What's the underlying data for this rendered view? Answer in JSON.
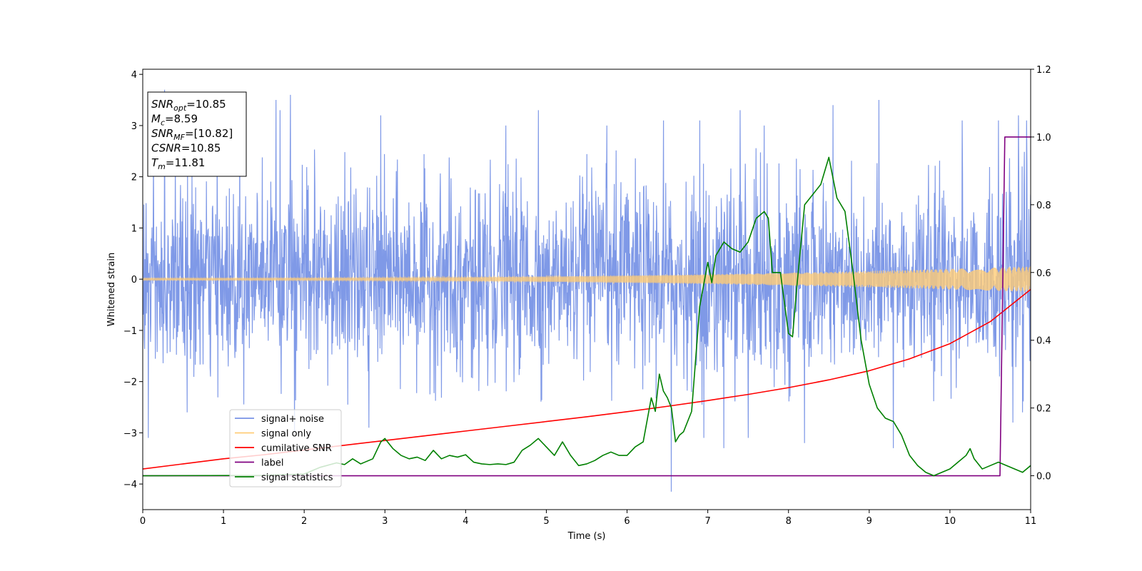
{
  "chart_data": {
    "type": "line",
    "title": "",
    "xlabel": "Time (s)",
    "ylabel": "Whitened strain",
    "y2label": "",
    "xlim": [
      0,
      11
    ],
    "ylim": [
      -4.5,
      4.1
    ],
    "y2lim": [
      -0.1,
      1.2
    ],
    "x_ticks": [
      0,
      1,
      2,
      3,
      4,
      5,
      6,
      7,
      8,
      9,
      10,
      11
    ],
    "y_ticks": [
      -4,
      -3,
      -2,
      -1,
      0,
      1,
      2,
      3,
      4
    ],
    "y2_ticks": [
      0.0,
      0.2,
      0.4,
      0.6,
      0.8,
      1.0,
      1.2
    ],
    "x_tick_labels": [
      "0",
      "1",
      "2",
      "3",
      "4",
      "5",
      "6",
      "7",
      "8",
      "9",
      "10",
      "11"
    ],
    "y_tick_labels": [
      "−4",
      "−3",
      "−2",
      "−1",
      "0",
      "1",
      "2",
      "3",
      "4"
    ],
    "y2_tick_labels": [
      "0.0",
      "0.2",
      "0.4",
      "0.6",
      "0.8",
      "1.0",
      "1.2"
    ],
    "grid": false,
    "legend_position": "lower-left",
    "annotation": {
      "lines": [
        {
          "sym": "SNR",
          "sub": "opt",
          "rest": "=10.85"
        },
        {
          "sym": "M",
          "sub": "c",
          "rest": "=8.59"
        },
        {
          "sym": "SNR",
          "sub": "MF",
          "rest": "=[10.82]"
        },
        {
          "sym": "CSNR",
          "sub": "",
          "rest": "=10.85"
        },
        {
          "sym": "T",
          "sub": "m",
          "rest": "=11.81"
        }
      ]
    },
    "series": [
      {
        "name": "signal+ noise",
        "axis": "left",
        "color": "#7893e6",
        "kind": "noise",
        "std": 0.9,
        "extremes": [
          [
            0.07,
            -3.1
          ],
          [
            0.27,
            3.7
          ],
          [
            0.55,
            -2.6
          ],
          [
            1.2,
            2.9
          ],
          [
            1.65,
            3.5
          ],
          [
            1.7,
            3.3
          ],
          [
            1.83,
            3.6
          ],
          [
            1.88,
            -3.0
          ],
          [
            2.8,
            -2.9
          ],
          [
            2.95,
            3.2
          ],
          [
            4.5,
            3.0
          ],
          [
            4.9,
            3.3
          ],
          [
            5.75,
            3.0
          ],
          [
            6.45,
            3.1
          ],
          [
            6.55,
            -4.15
          ],
          [
            6.9,
            3.1
          ],
          [
            6.95,
            -3.1
          ],
          [
            7.2,
            -3.3
          ],
          [
            7.4,
            3.3
          ],
          [
            7.5,
            -3.1
          ],
          [
            7.7,
            3.0
          ],
          [
            8.2,
            -3.2
          ],
          [
            8.55,
            3.4
          ],
          [
            9.12,
            3.5
          ],
          [
            9.3,
            -3.3
          ],
          [
            10.15,
            3.1
          ],
          [
            10.6,
            3.1
          ],
          [
            10.78,
            -2.8
          ],
          [
            10.85,
            3.2
          ],
          [
            10.95,
            3.1
          ],
          [
            10.9,
            -2.6
          ]
        ]
      },
      {
        "name": "signal only",
        "axis": "left",
        "color": "#ffcc77",
        "kind": "chirp",
        "amp_start": 0.02,
        "amp_end": 0.25
      },
      {
        "name": "cumilative SNR",
        "axis": "right",
        "color": "#ff0000",
        "x": [
          0,
          0.5,
          1,
          1.5,
          2,
          2.5,
          3,
          3.5,
          4,
          4.5,
          5,
          5.5,
          6,
          6.5,
          7,
          7.5,
          8,
          8.5,
          9,
          9.5,
          10,
          10.5,
          11
        ],
        "y": [
          0.02,
          0.035,
          0.05,
          0.062,
          0.076,
          0.09,
          0.104,
          0.118,
          0.132,
          0.146,
          0.16,
          0.174,
          0.189,
          0.205,
          0.222,
          0.24,
          0.26,
          0.283,
          0.31,
          0.345,
          0.39,
          0.455,
          0.55
        ]
      },
      {
        "name": "label",
        "axis": "right",
        "color": "#800080",
        "x": [
          0,
          10.62,
          10.68,
          11
        ],
        "y": [
          0,
          0,
          1,
          1
        ]
      },
      {
        "name": "signal statistics",
        "axis": "right",
        "color": "#008000",
        "x": [
          0,
          1.5,
          2.0,
          2.2,
          2.4,
          2.5,
          2.6,
          2.7,
          2.85,
          2.95,
          3.0,
          3.1,
          3.2,
          3.3,
          3.4,
          3.5,
          3.6,
          3.7,
          3.8,
          3.9,
          4.0,
          4.1,
          4.2,
          4.3,
          4.4,
          4.5,
          4.6,
          4.7,
          4.8,
          4.9,
          5.0,
          5.1,
          5.2,
          5.3,
          5.4,
          5.5,
          5.6,
          5.7,
          5.8,
          5.9,
          6.0,
          6.1,
          6.2,
          6.3,
          6.35,
          6.4,
          6.45,
          6.5,
          6.55,
          6.6,
          6.65,
          6.7,
          6.8,
          6.9,
          7.0,
          7.05,
          7.1,
          7.2,
          7.3,
          7.4,
          7.5,
          7.6,
          7.7,
          7.75,
          7.8,
          7.9,
          8.0,
          8.05,
          8.1,
          8.2,
          8.3,
          8.4,
          8.5,
          8.6,
          8.7,
          8.8,
          8.9,
          9.0,
          9.1,
          9.2,
          9.3,
          9.4,
          9.5,
          9.6,
          9.7,
          9.8,
          9.9,
          10.0,
          10.1,
          10.2,
          10.25,
          10.3,
          10.4,
          10.5,
          10.6,
          10.7,
          10.8,
          10.9,
          11.0
        ],
        "y": [
          0.0,
          0.001,
          0.005,
          0.025,
          0.038,
          0.033,
          0.05,
          0.035,
          0.05,
          0.1,
          0.11,
          0.08,
          0.06,
          0.05,
          0.055,
          0.045,
          0.075,
          0.05,
          0.06,
          0.055,
          0.062,
          0.04,
          0.035,
          0.033,
          0.035,
          0.033,
          0.04,
          0.075,
          0.09,
          0.11,
          0.085,
          0.06,
          0.1,
          0.06,
          0.03,
          0.035,
          0.045,
          0.06,
          0.07,
          0.06,
          0.06,
          0.085,
          0.1,
          0.23,
          0.19,
          0.3,
          0.25,
          0.23,
          0.2,
          0.1,
          0.12,
          0.13,
          0.19,
          0.5,
          0.63,
          0.57,
          0.65,
          0.69,
          0.67,
          0.66,
          0.69,
          0.76,
          0.78,
          0.76,
          0.6,
          0.6,
          0.42,
          0.41,
          0.55,
          0.8,
          0.83,
          0.86,
          0.94,
          0.82,
          0.78,
          0.6,
          0.4,
          0.27,
          0.2,
          0.17,
          0.16,
          0.12,
          0.06,
          0.03,
          0.01,
          0.0,
          0.01,
          0.02,
          0.04,
          0.06,
          0.08,
          0.05,
          0.02,
          0.03,
          0.04,
          0.03,
          0.02,
          0.01,
          0.03
        ]
      }
    ]
  }
}
